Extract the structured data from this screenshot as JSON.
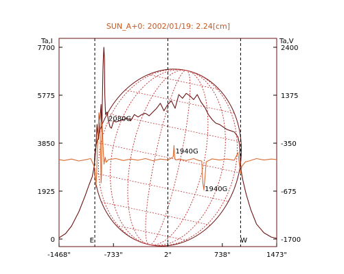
{
  "chart_data": {
    "type": "line",
    "title": "SUN_A+0: 2002/01/19: 2.24[cm]",
    "y_left_label": "Ta,I",
    "y_right_label": "Ta,V",
    "x_ticks": [
      "-1468\"",
      "-733\"",
      "2\"",
      "738\"",
      "1473\""
    ],
    "x_tick_values": [
      -1468,
      -733,
      2,
      738,
      1473
    ],
    "y_left_ticks": [
      "0",
      "1925",
      "3850",
      "5775",
      "7700"
    ],
    "y_left_values": [
      0,
      1925,
      3850,
      5775,
      7700
    ],
    "y_right_ticks": [
      "-1700",
      "-675",
      "-350",
      "1375",
      "2400"
    ],
    "xlim": [
      -1468,
      1473
    ],
    "ylim_left": [
      0,
      7700
    ],
    "grid": "dashed verticals at E, center and W",
    "limb_labels": {
      "east": "E",
      "west": "W"
    },
    "limb_positions": [
      -985,
      2,
      985
    ],
    "annotations": [
      {
        "text": "2080G",
        "x": -800,
        "y": 4750
      },
      {
        "text": "1940G",
        "x": 105,
        "y": 3440
      },
      {
        "text": "1940G",
        "x": 500,
        "y": 1920
      }
    ],
    "series": [
      {
        "name": "I",
        "color": "#6b1212",
        "x": [
          -1468,
          -1380,
          -1300,
          -1200,
          -1120,
          -1060,
          -1020,
          -1000,
          -990,
          -970,
          -955,
          -945,
          -935,
          -915,
          -900,
          -890,
          -875,
          -870,
          -862,
          -855,
          -850,
          -840,
          -820,
          -800,
          -780,
          -760,
          -730,
          -700,
          -650,
          -600,
          -550,
          -500,
          -450,
          -400,
          -350,
          -300,
          -250,
          -200,
          -150,
          -100,
          -50,
          0,
          50,
          100,
          150,
          200,
          250,
          300,
          350,
          400,
          450,
          500,
          550,
          600,
          650,
          700,
          750,
          800,
          850,
          900,
          950,
          970,
          985,
          1000,
          1020,
          1060,
          1120,
          1200,
          1300,
          1400,
          1473
        ],
        "y": [
          50,
          220,
          520,
          1100,
          1700,
          2200,
          2500,
          2800,
          3000,
          3700,
          4600,
          4200,
          4000,
          4800,
          5400,
          4300,
          6800,
          7250,
          7700,
          7250,
          5800,
          5000,
          5100,
          4750,
          4500,
          4450,
          4750,
          4700,
          4750,
          4800,
          4850,
          4750,
          5000,
          4900,
          5000,
          5050,
          4950,
          5100,
          5250,
          5450,
          5150,
          5400,
          5550,
          5250,
          5800,
          5650,
          5850,
          5750,
          5600,
          5800,
          5500,
          5300,
          5000,
          4800,
          4650,
          4600,
          4500,
          4400,
          4350,
          4300,
          4100,
          3800,
          3000,
          2600,
          2300,
          1800,
          1200,
          600,
          250,
          80,
          30
        ]
      },
      {
        "name": "V",
        "color": "#d86a32",
        "x": [
          -1468,
          -1400,
          -1300,
          -1200,
          -1100,
          -1040,
          -1000,
          -985,
          -970,
          -960,
          -950,
          -940,
          -930,
          -915,
          -905,
          -900,
          -895,
          -885,
          -870,
          -860,
          -845,
          -830,
          -800,
          -700,
          -600,
          -500,
          -400,
          -300,
          -200,
          -100,
          0,
          40,
          75,
          85,
          95,
          110,
          150,
          250,
          350,
          420,
          460,
          475,
          490,
          505,
          520,
          600,
          700,
          800,
          900,
          950,
          985,
          1000,
          1050,
          1100,
          1200,
          1300,
          1400,
          1473
        ],
        "y": [
          0,
          -20,
          10,
          -30,
          0,
          20,
          -120,
          -200,
          -600,
          -300,
          200,
          600,
          1000,
          800,
          0,
          -500,
          -350,
          800,
          150,
          -100,
          50,
          -60,
          0,
          20,
          -20,
          10,
          -15,
          20,
          -25,
          10,
          -10,
          20,
          60,
          300,
          20,
          -10,
          10,
          -20,
          20,
          -20,
          -30,
          -500,
          -650,
          -350,
          -50,
          15,
          -10,
          10,
          -15,
          150,
          -300,
          -150,
          -50,
          -30,
          20,
          -10,
          10,
          0
        ]
      }
    ]
  }
}
